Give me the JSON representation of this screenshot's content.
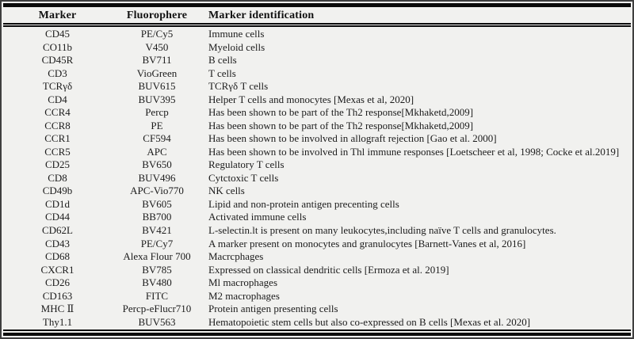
{
  "table": {
    "headers": [
      "Marker",
      "Fluorophere",
      "Marker identification"
    ],
    "rows": [
      [
        "CD45",
        "PE/Cy5",
        "Immune cells"
      ],
      [
        "CO11b",
        "V450",
        "Myeloid cells"
      ],
      [
        "CD45R",
        "BV711",
        "B cells"
      ],
      [
        "CD3",
        "VioGreen",
        "T cells"
      ],
      [
        "TCRγδ",
        "BUV615",
        "TCRγδ T cells"
      ],
      [
        "CD4",
        "BUV395",
        "Helper T cells and monocytes [Mexas et al, 2020]"
      ],
      [
        "CCR4",
        "Percp",
        "Has been shown to be part of the Th2 response[Mkhaketd,2009]"
      ],
      [
        "CCR8",
        "PE",
        "Has been shown to be part of the Th2 response[Mkhaketd,2009]"
      ],
      [
        "CCR1",
        "CF594",
        "Has been shown to be involved in allograft rejection [Gao et al. 2000]"
      ],
      [
        "CCR5",
        "APC",
        "Has been shown to be involved in Thl immune responses [Loetscheer et al, 1998; Cocke et al.2019]"
      ],
      [
        "CD25",
        "BV650",
        "Regulatory T cells"
      ],
      [
        "CD8",
        "BUV496",
        "Cytctoxic T cells"
      ],
      [
        "CD49b",
        "APC-Vio770",
        "NK cells"
      ],
      [
        "CD1d",
        "BV605",
        "Lipid and non-protein antigen precenting cells"
      ],
      [
        "CD44",
        "BB700",
        "Activated immune cells"
      ],
      [
        "CD62L",
        "BV421",
        "L-selectin.lt is present on many leukocytes,including naïve T cells and granulocytes."
      ],
      [
        "CD43",
        "PE/Cy7",
        "A marker present on monocytes and granulocytes [Barnett-Vanes et al, 2016]"
      ],
      [
        "CD68",
        "Alexa Flour 700",
        "Macrcphages"
      ],
      [
        "CXCR1",
        "BV785",
        "Expressed on classical dendritic cells [Ermoza et al. 2019]"
      ],
      [
        "CD26",
        "BV480",
        "Ml macrophages"
      ],
      [
        "CD163",
        "FITC",
        "M2 macrophages"
      ],
      [
        "MHC Ⅱ",
        "Percp-eFlucr710",
        "Protein antigen presenting cells"
      ],
      [
        "Thy1.1",
        "BUV563",
        "Hematopoietic stem cells but also co-expressed on B cells [Mexas et al. 2020]"
      ]
    ]
  }
}
